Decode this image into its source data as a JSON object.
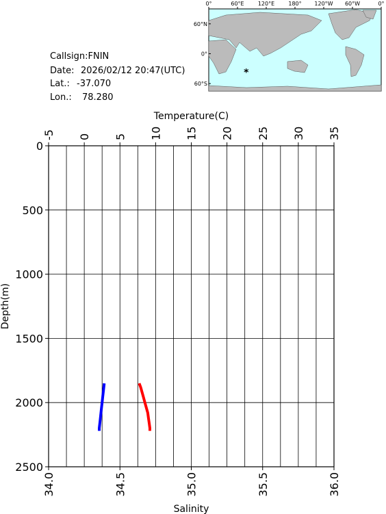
{
  "info": {
    "callsign": "Callsign:FNIN",
    "date_label": "Date:",
    "date": "2026/02/12 20:47(UTC)",
    "lat_label": "Lat.:",
    "lat": {
      "value": -37.07,
      "label": "-37.070"
    },
    "lon_label": "Lon.:",
    "lon": {
      "value": 78.28,
      "label": "78.280"
    }
  },
  "map": {
    "lonlim": [
      0,
      360
    ],
    "latlim": [
      -75,
      90
    ],
    "lonticks": [
      {
        "value": 0,
        "label": "0°"
      },
      {
        "value": 60,
        "label": "60°E"
      },
      {
        "value": 120,
        "label": "120°E"
      },
      {
        "value": 180,
        "label": "180°"
      },
      {
        "value": 240,
        "label": "120°W"
      },
      {
        "value": 300,
        "label": "60°W"
      },
      {
        "value": 360,
        "label": "0°"
      }
    ],
    "latticks": [
      {
        "value": 60,
        "label": "60°N"
      },
      {
        "value": 0,
        "label": "0°"
      },
      {
        "value": -60,
        "label": "60°S"
      }
    ],
    "marker_color": "#ff0000"
  },
  "chart_data": {
    "type": "line",
    "x2label": "Temperature(C)",
    "xlabel": "Salinity",
    "ylabel": "Depth(m)",
    "ylim": [
      0,
      2500
    ],
    "yticks": [
      0,
      500,
      1000,
      1500,
      2000,
      2500
    ],
    "y_inverted": true,
    "x2lim": [
      -5,
      35
    ],
    "x2ticks": [
      -5,
      0,
      5,
      10,
      15,
      20,
      25,
      30,
      35
    ],
    "x2grid": [
      -2.5,
      0,
      2.5,
      5,
      7.5,
      10,
      12.5,
      15,
      17.5,
      20,
      22.5,
      25,
      27.5,
      30,
      32.5
    ],
    "xlim": [
      34,
      36
    ],
    "xticks": [
      {
        "value": 34,
        "label": "34.0"
      },
      34.5,
      {
        "value": 35,
        "label": "35.0"
      },
      35.5,
      {
        "value": 36,
        "label": "36.0"
      }
    ],
    "grid": true,
    "series": [
      {
        "color": "#ff0000",
        "axis": "x2",
        "depth": [
          1850,
          1880,
          1920,
          1960,
          2000,
          2040,
          2080,
          2120,
          2160,
          2200,
          2220
        ],
        "values": [
          7.7,
          7.9,
          8.1,
          8.3,
          8.5,
          8.7,
          8.9,
          9.0,
          9.1,
          9.2,
          9.2
        ]
      },
      {
        "color": "#0000ff",
        "axis": "x",
        "depth": [
          1850,
          1900,
          1950,
          2000,
          2050,
          2100,
          2150,
          2200,
          2220
        ],
        "values": [
          34.39,
          34.385,
          34.38,
          34.375,
          34.37,
          34.365,
          34.36,
          34.355,
          34.355
        ]
      }
    ]
  }
}
